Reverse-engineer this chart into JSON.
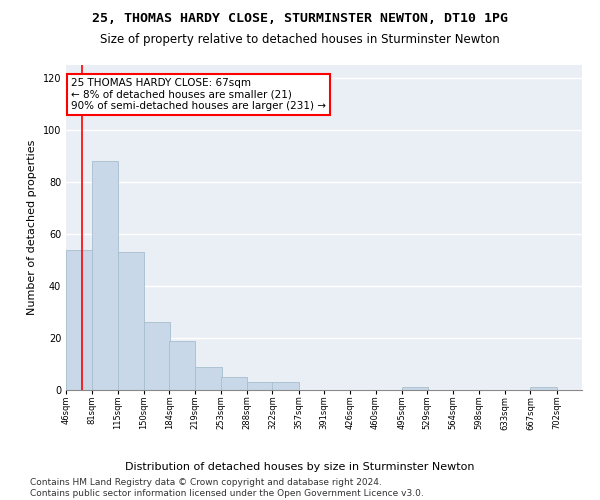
{
  "title": "25, THOMAS HARDY CLOSE, STURMINSTER NEWTON, DT10 1PG",
  "subtitle": "Size of property relative to detached houses in Sturminster Newton",
  "xlabel": "Distribution of detached houses by size in Sturminster Newton",
  "ylabel": "Number of detached properties",
  "bar_color": "#c8d8e8",
  "bar_edge_color": "#a8bece",
  "annotation_text": "25 THOMAS HARDY CLOSE: 67sqm\n← 8% of detached houses are smaller (21)\n90% of semi-detached houses are larger (231) →",
  "redline_x": 67,
  "redline_color": "red",
  "bin_edges": [
    46,
    81,
    115,
    150,
    184,
    219,
    253,
    288,
    322,
    357,
    391,
    426,
    460,
    495,
    529,
    564,
    598,
    633,
    667,
    702,
    736
  ],
  "bar_heights": [
    54,
    88,
    53,
    26,
    19,
    9,
    5,
    3,
    3,
    0,
    0,
    0,
    0,
    1,
    0,
    0,
    0,
    0,
    1,
    0
  ],
  "ylim": [
    0,
    125
  ],
  "yticks": [
    0,
    20,
    40,
    60,
    80,
    100,
    120
  ],
  "background_color": "#eaeff6",
  "grid_color": "white",
  "footer": "Contains HM Land Registry data © Crown copyright and database right 2024.\nContains public sector information licensed under the Open Government Licence v3.0.",
  "title_fontsize": 9.5,
  "subtitle_fontsize": 8.5,
  "xlabel_fontsize": 8,
  "ylabel_fontsize": 8,
  "tick_fontsize": 6,
  "footer_fontsize": 6.5,
  "ann_fontsize": 7.5
}
